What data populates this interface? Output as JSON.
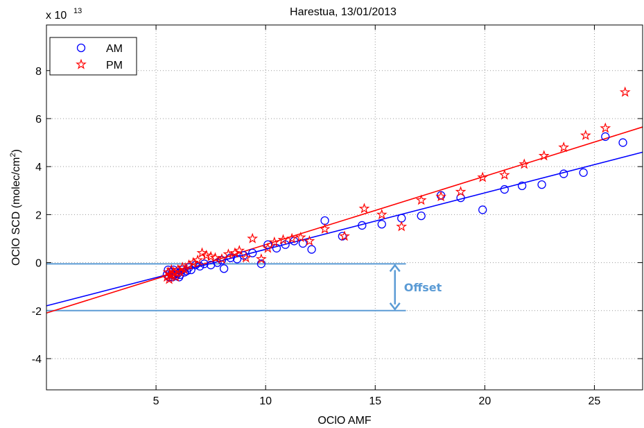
{
  "chart_data": {
    "type": "scatter",
    "title": "Harestua, 13/01/2013",
    "xlabel": "OClO AMF",
    "ylabel": "OClO SCD (molec/cm",
    "ylabel_sup": "2",
    "ylabel_close": ")",
    "y_multiplier_base": "x 10",
    "y_multiplier_exp": "13",
    "xlim": [
      0,
      27.2
    ],
    "ylim": [
      -5.3,
      9.9
    ],
    "xticks": [
      5,
      10,
      15,
      20,
      25
    ],
    "xtick_labels": [
      "5",
      "10",
      "15",
      "20",
      "25"
    ],
    "yticks": [
      -4,
      -2,
      0,
      2,
      4,
      6,
      8
    ],
    "ytick_labels": [
      "-4",
      "-2",
      "0",
      "2",
      "4",
      "6",
      "8"
    ],
    "grid": true,
    "legend_position": "top-left",
    "series": [
      {
        "name": "AM",
        "marker": "circle",
        "color": "#0000ff",
        "x": [
          5.5,
          5.55,
          5.6,
          5.65,
          5.7,
          5.75,
          5.8,
          5.85,
          5.9,
          5.95,
          6.0,
          6.05,
          6.1,
          6.2,
          6.3,
          6.4,
          6.5,
          6.6,
          6.8,
          7.0,
          7.2,
          7.5,
          7.8,
          8.0,
          8.1,
          8.4,
          8.7,
          9.0,
          9.4,
          9.8,
          10.1,
          10.5,
          10.9,
          11.3,
          11.7,
          12.1,
          12.7,
          13.5,
          14.4,
          15.3,
          16.2,
          17.1,
          18.0,
          18.9,
          19.9,
          20.9,
          21.7,
          22.6,
          23.6,
          24.5,
          25.5,
          26.3
        ],
        "y": [
          -0.5,
          -0.3,
          -0.6,
          -0.4,
          -0.5,
          -0.6,
          -0.3,
          -0.5,
          -0.55,
          -0.4,
          -0.45,
          -0.6,
          -0.5,
          -0.3,
          -0.4,
          -0.35,
          -0.2,
          -0.3,
          -0.1,
          -0.15,
          -0.05,
          -0.1,
          0.0,
          0.1,
          -0.25,
          0.2,
          0.15,
          0.3,
          0.4,
          -0.05,
          0.75,
          0.6,
          0.75,
          0.9,
          0.8,
          0.55,
          1.75,
          1.1,
          1.55,
          1.6,
          1.85,
          1.95,
          2.8,
          2.7,
          2.2,
          3.05,
          3.2,
          3.25,
          3.7,
          3.75,
          5.25,
          5.0
        ]
      },
      {
        "name": "PM",
        "marker": "star",
        "color": "#ff0000",
        "x": [
          5.5,
          5.55,
          5.6,
          5.65,
          5.7,
          5.75,
          5.8,
          5.9,
          6.0,
          6.1,
          6.2,
          6.3,
          6.5,
          6.7,
          6.9,
          7.1,
          7.3,
          7.5,
          7.7,
          8.0,
          8.3,
          8.6,
          8.8,
          9.1,
          9.4,
          9.8,
          10.1,
          10.4,
          10.8,
          11.2,
          11.6,
          12.0,
          12.7,
          13.6,
          14.5,
          15.3,
          16.2,
          17.1,
          18.0,
          18.9,
          19.9,
          20.9,
          21.8,
          22.7,
          23.6,
          24.6,
          25.5,
          26.4
        ],
        "y": [
          -0.6,
          -0.4,
          -0.7,
          -0.5,
          -0.3,
          -0.5,
          -0.4,
          -0.6,
          -0.3,
          -0.4,
          -0.2,
          -0.3,
          -0.1,
          0.0,
          0.1,
          0.4,
          0.3,
          0.25,
          0.2,
          0.15,
          0.35,
          0.4,
          0.5,
          0.2,
          1.0,
          0.15,
          0.6,
          0.85,
          0.95,
          1.0,
          1.05,
          0.9,
          1.4,
          1.1,
          2.25,
          2.0,
          1.5,
          2.6,
          2.75,
          2.95,
          3.55,
          3.65,
          4.1,
          4.45,
          4.8,
          5.3,
          5.6,
          7.1
        ]
      }
    ],
    "fit_lines": [
      {
        "series": "AM",
        "color": "#0000ff",
        "x": [
          0,
          27.2
        ],
        "y": [
          -1.8,
          4.6
        ]
      },
      {
        "series": "PM",
        "color": "#ff0000",
        "x": [
          0,
          27.2
        ],
        "y": [
          -2.1,
          5.65
        ]
      }
    ],
    "annotation": {
      "label": "Offset",
      "color": "#5b9bd5",
      "upper_y": -0.05,
      "lower_y": -2.0,
      "line_x_end": 16.4,
      "arrow_x": 15.9
    }
  }
}
